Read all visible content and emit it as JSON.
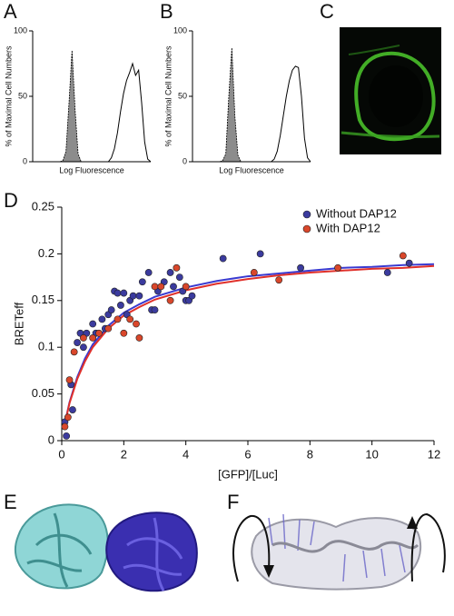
{
  "panel_labels": [
    "A",
    "B",
    "C",
    "D",
    "E",
    "F"
  ],
  "chart_data": [
    {
      "type": "area",
      "ylabel": "% of Maximal Cell Numbers",
      "xlabel": "Log Fluorescence",
      "categories": [
        null,
        null,
        null,
        null,
        null,
        null,
        null,
        null,
        null,
        null,
        null,
        null,
        null,
        null,
        null,
        null,
        null,
        null,
        null,
        null,
        null,
        null,
        null,
        null,
        null,
        null,
        null,
        null,
        null,
        null,
        null,
        null,
        null,
        null,
        null,
        null,
        null,
        null,
        null,
        null
      ],
      "ylim": [
        0,
        100
      ],
      "yticks": [
        0,
        50,
        100
      ],
      "series": [
        {
          "color": "#8c8c8c",
          "fill": true,
          "values": [
            0,
            0,
            0,
            0,
            0,
            0,
            0,
            0,
            0,
            0,
            1,
            8,
            45,
            85,
            40,
            6,
            0,
            0,
            0,
            0,
            0,
            0,
            0,
            0,
            0,
            0,
            0,
            0,
            0,
            0,
            0,
            0,
            0,
            0,
            0,
            0,
            0,
            0,
            0,
            0
          ]
        },
        {
          "color": "#000000",
          "fill": false,
          "values": [
            0,
            0,
            0,
            0,
            0,
            0,
            0,
            0,
            0,
            0,
            0,
            0,
            0,
            0,
            0,
            0,
            0,
            0,
            0,
            0,
            0,
            0,
            0,
            0,
            0,
            0,
            3,
            10,
            22,
            38,
            52,
            62,
            68,
            75,
            66,
            70,
            45,
            15,
            2,
            0
          ]
        }
      ]
    },
    {
      "type": "area",
      "ylabel": "% of Maximal Cell Numbers",
      "xlabel": "Log Fluorescence",
      "categories": [
        null,
        null,
        null,
        null,
        null,
        null,
        null,
        null,
        null,
        null,
        null,
        null,
        null,
        null,
        null,
        null,
        null,
        null,
        null,
        null,
        null,
        null,
        null,
        null,
        null,
        null,
        null,
        null,
        null,
        null,
        null,
        null,
        null,
        null,
        null,
        null,
        null,
        null,
        null,
        null
      ],
      "ylim": [
        0,
        100
      ],
      "yticks": [
        0,
        50,
        100
      ],
      "series": [
        {
          "color": "#8c8c8c",
          "fill": true,
          "values": [
            0,
            0,
            0,
            0,
            0,
            0,
            0,
            0,
            0,
            0,
            1,
            6,
            50,
            87,
            35,
            5,
            0,
            0,
            0,
            0,
            0,
            0,
            0,
            0,
            0,
            0,
            0,
            0,
            0,
            0,
            0,
            0,
            0,
            0,
            0,
            0,
            0,
            0,
            0,
            0
          ]
        },
        {
          "color": "#000000",
          "fill": false,
          "values": [
            0,
            0,
            0,
            0,
            0,
            0,
            0,
            0,
            0,
            0,
            0,
            0,
            0,
            0,
            0,
            0,
            0,
            0,
            0,
            0,
            0,
            0,
            0,
            0,
            0,
            0,
            0,
            2,
            8,
            20,
            35,
            50,
            62,
            70,
            73,
            72,
            50,
            18,
            3,
            0
          ]
        }
      ]
    },
    {
      "type": "scatter",
      "xlabel": "[GFP]/[Luc]",
      "ylabel": "BRETeff",
      "xlim": [
        0,
        12
      ],
      "xticks": [
        0,
        2,
        4,
        6,
        8,
        10,
        12
      ],
      "ylim": [
        0,
        0.25
      ],
      "yticks": [
        0,
        0.05,
        0.1,
        0.15,
        0.2,
        0.25
      ],
      "legend": "top-right",
      "series": [
        {
          "name": "Without DAP12",
          "color": "#3b3b9e",
          "x": [
            0.1,
            0.15,
            0.3,
            0.35,
            0.5,
            0.6,
            0.7,
            0.8,
            1.0,
            1.1,
            1.3,
            1.4,
            1.5,
            1.6,
            1.7,
            1.8,
            1.9,
            2.0,
            2.1,
            2.2,
            2.3,
            2.5,
            2.6,
            2.8,
            2.9,
            3.0,
            3.1,
            3.3,
            3.5,
            3.6,
            3.8,
            3.9,
            4.0,
            4.1,
            4.2,
            5.2,
            6.4,
            7.7,
            10.5,
            11.2
          ],
          "values": [
            0.02,
            0.005,
            0.06,
            0.033,
            0.105,
            0.115,
            0.1,
            0.115,
            0.125,
            0.115,
            0.13,
            0.12,
            0.135,
            0.14,
            0.16,
            0.158,
            0.145,
            0.158,
            0.135,
            0.15,
            0.155,
            0.155,
            0.17,
            0.18,
            0.14,
            0.14,
            0.16,
            0.17,
            0.18,
            0.165,
            0.175,
            0.16,
            0.15,
            0.15,
            0.155,
            0.195,
            0.2,
            0.185,
            0.18,
            0.19
          ]
        },
        {
          "name": "With DAP12",
          "color": "#d9472b",
          "x": [
            0.1,
            0.2,
            0.25,
            0.4,
            0.7,
            1.0,
            1.2,
            1.5,
            1.8,
            2.0,
            2.2,
            2.4,
            2.5,
            3.0,
            3.2,
            3.5,
            3.7,
            4.0,
            6.2,
            7.0,
            8.9,
            11.0
          ],
          "values": [
            0.015,
            0.025,
            0.065,
            0.095,
            0.11,
            0.11,
            0.115,
            0.12,
            0.13,
            0.115,
            0.13,
            0.125,
            0.11,
            0.165,
            0.165,
            0.15,
            0.185,
            0.165,
            0.18,
            0.172,
            0.185,
            0.198
          ]
        }
      ],
      "fits": [
        {
          "color": "#3a3ad0",
          "x": [
            0.1,
            0.25,
            0.5,
            0.75,
            1,
            1.5,
            2,
            2.5,
            3,
            4,
            5,
            6,
            7,
            8,
            9,
            10,
            11,
            12
          ],
          "values": [
            0.0186,
            0.041,
            0.068,
            0.088,
            0.103,
            0.123,
            0.137,
            0.146,
            0.154,
            0.164,
            0.171,
            0.176,
            0.179,
            0.182,
            0.185,
            0.186,
            0.188,
            0.189
          ]
        },
        {
          "color": "#e0302a",
          "x": [
            0.1,
            0.25,
            0.5,
            0.75,
            1,
            1.5,
            2,
            2.5,
            3,
            4,
            5,
            6,
            7,
            8,
            9,
            10,
            11,
            12
          ],
          "values": [
            0.018,
            0.04,
            0.066,
            0.085,
            0.1,
            0.12,
            0.134,
            0.143,
            0.151,
            0.161,
            0.168,
            0.173,
            0.177,
            0.18,
            0.182,
            0.184,
            0.185,
            0.187
          ]
        }
      ]
    }
  ]
}
